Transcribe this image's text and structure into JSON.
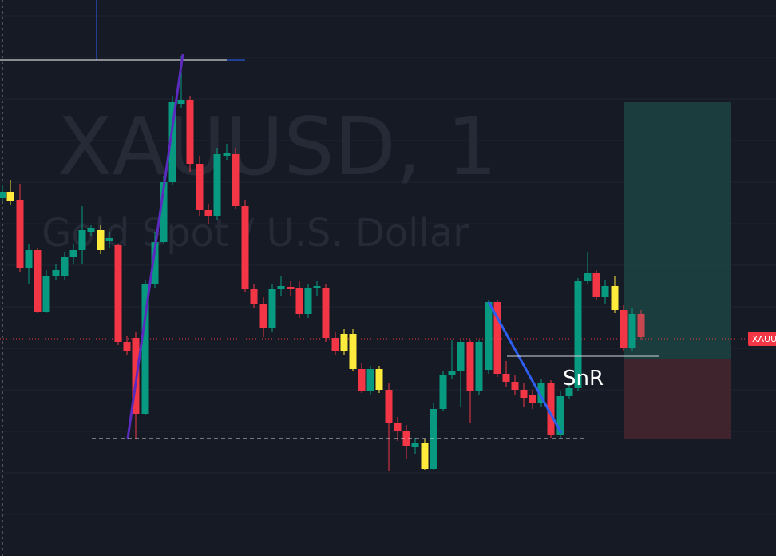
{
  "watermark": {
    "symbol": "XAUUSD, 1",
    "description": "Gold Spot / U.S. Dollar"
  },
  "drawings": {
    "snr_label": "SnR"
  },
  "price_label": "XAUU"
}
